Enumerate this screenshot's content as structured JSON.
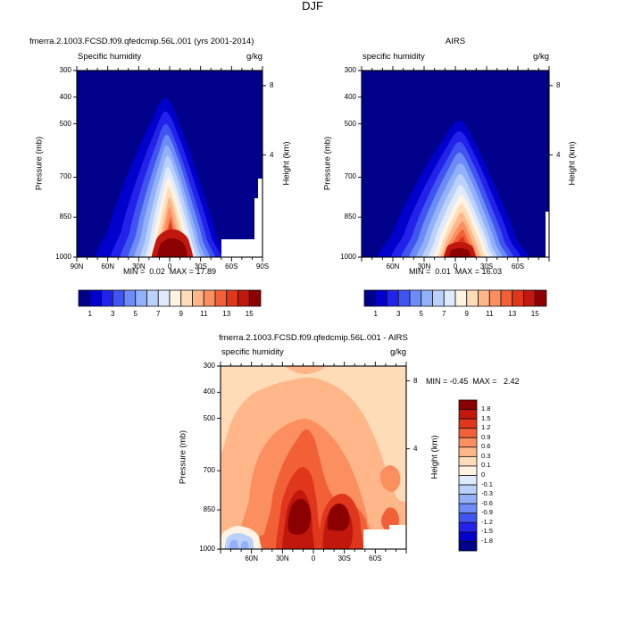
{
  "figure_title": "DJF",
  "palette": [
    "#00008B",
    "#0000CC",
    "#2222EA",
    "#4054F2",
    "#6E8CF7",
    "#93B1FA",
    "#BAD1FC",
    "#DFEAFD",
    "#FFF3E3",
    "#FFDCB8",
    "#FFB78A",
    "#FB8F5F",
    "#F26038",
    "#E0361C",
    "#C1170C",
    "#8B0000"
  ],
  "panels": [
    {
      "title": "fmerra.2.1003.FCSD.f09.qfedcmip.56L.001 (yrs 2001-2014)",
      "header_left": "Specific humidity",
      "header_right": "g/kg",
      "ylabel_left": "Pressure (mb)",
      "ylabel_right": "Height (km)",
      "y_ticks": [
        "300",
        "400",
        "500",
        "700",
        "850",
        "1000"
      ],
      "height_ticks": [
        "8",
        "4"
      ],
      "x_ticks": [
        "90N",
        "60N",
        "30N",
        "0",
        "30S",
        "60S",
        "90S"
      ],
      "stats": "MIN =  0.02  MAX = 17.89",
      "colorbar_labels": [
        "1",
        "3",
        "5",
        "7",
        "9",
        "11",
        "13",
        "15"
      ]
    },
    {
      "title": "AIRS",
      "header_left": "specific humidity",
      "header_right": "g/kg",
      "ylabel_left": "Pressure (mb)",
      "ylabel_right": "Height (km)",
      "y_ticks": [
        "300",
        "400",
        "500",
        "700",
        "850",
        "1000"
      ],
      "height_ticks": [
        "8",
        "4"
      ],
      "x_ticks": [
        "60N",
        "30N",
        "0",
        "30S",
        "60S"
      ],
      "stats": "MIN =  0.01  MAX = 16.03",
      "colorbar_labels": [
        "1",
        "3",
        "5",
        "7",
        "9",
        "11",
        "13",
        "15"
      ]
    },
    {
      "title": "fmerra.2.1003.FCSD.f09.qfedcmip.56L.001 - AIRS",
      "header_left": "specific humidity",
      "header_right": "g/kg",
      "ylabel_left": "Pressure (mb)",
      "ylabel_right": "Height (km)",
      "y_ticks": [
        "300",
        "400",
        "500",
        "700",
        "850",
        "1000"
      ],
      "height_ticks": [
        "8",
        "4"
      ],
      "x_ticks": [
        "60N",
        "30N",
        "0",
        "30S",
        "60S"
      ],
      "stats": "MIN = -0.45  MAX =   2.42",
      "colorbar_labels": [
        "1.8",
        "1.5",
        "1.2",
        "0.9",
        "0.6",
        "0.3",
        "0.1",
        "0",
        "-0.1",
        "-0.3",
        "-0.6",
        "-0.9",
        "-1.2",
        "-1.5",
        "-1.8"
      ]
    }
  ],
  "chart_data": [
    {
      "type": "contour",
      "title": "fmerra.2.1003.FCSD.f09.qfedcmip.56L.001 (yrs 2001-2014)",
      "season": "DJF",
      "variable": "Specific humidity",
      "units": "g/kg",
      "x_ticks": [
        "90N",
        "60N",
        "30N",
        "0",
        "30S",
        "60S",
        "90S"
      ],
      "ylabel": "Pressure (mb)",
      "y_range_mb": [
        300,
        1000
      ],
      "right_axis": "Height (km)",
      "right_ticks_km": [
        8,
        4
      ],
      "contour_levels": [
        1,
        2,
        3,
        4,
        5,
        6,
        7,
        8,
        9,
        10,
        11,
        12,
        13,
        14,
        15
      ],
      "colorbar_labeled_levels": [
        1,
        3,
        5,
        7,
        9,
        11,
        13,
        15
      ],
      "min": 0.02,
      "max": 17.89,
      "missing_data": "white terrain cutout below ~930 mb from ~50S to 90S",
      "structure": "surface equatorial maximum >15 g/kg tapering upward and poleward; <1 g/kg above ~410 mb and poleward of ~65N / ~52S",
      "estimated_values": {
        "pressures_mb": [
          300,
          400,
          500,
          700,
          850,
          1000
        ],
        "latitudes": [
          "90N",
          "60N",
          "30N",
          "0",
          "30S",
          "60S",
          "90S"
        ],
        "grid_g_per_kg": [
          [
            0.1,
            0.2,
            0.4,
            0.9,
            0.6,
            0.2,
            0.1
          ],
          [
            0.2,
            0.3,
            0.9,
            2.0,
            1.3,
            0.4,
            0.1
          ],
          [
            0.3,
            0.6,
            1.6,
            3.8,
            2.6,
            0.8,
            0.2
          ],
          [
            0.8,
            1.5,
            3.6,
            7.6,
            5.4,
            1.8,
            0.3
          ],
          [
            1.2,
            2.4,
            5.5,
            11.5,
            8.0,
            2.8,
            null
          ],
          [
            1.8,
            3.6,
            8.0,
            17.5,
            12.0,
            4.0,
            null
          ]
        ]
      }
    },
    {
      "type": "contour",
      "title": "AIRS",
      "season": "DJF",
      "variable": "specific humidity",
      "units": "g/kg",
      "x_ticks": [
        "60N",
        "30N",
        "0",
        "30S",
        "60S"
      ],
      "ylabel": "Pressure (mb)",
      "y_range_mb": [
        300,
        1000
      ],
      "right_axis": "Height (km)",
      "right_ticks_km": [
        8,
        4
      ],
      "contour_levels": [
        1,
        2,
        3,
        4,
        5,
        6,
        7,
        8,
        9,
        10,
        11,
        12,
        13,
        14,
        15
      ],
      "colorbar_labeled_levels": [
        1,
        3,
        5,
        7,
        9,
        11,
        13,
        15
      ],
      "min": 0.01,
      "max": 16.03,
      "missing_data": "narrow white sliver at far southern edge below ~850 mb",
      "structure": "surface equatorial maximum ~16 g/kg, slightly narrower and drier than the model; <1 g/kg above ~450 mb",
      "estimated_values": {
        "pressures_mb": [
          300,
          400,
          500,
          700,
          850,
          1000
        ],
        "latitudes": [
          "90N",
          "60N",
          "30N",
          "0",
          "30S",
          "60S",
          "90S"
        ],
        "grid_g_per_kg": [
          [
            0.1,
            0.2,
            0.3,
            0.8,
            0.5,
            0.2,
            0.1
          ],
          [
            0.2,
            0.3,
            0.8,
            1.8,
            1.2,
            0.3,
            0.1
          ],
          [
            0.3,
            0.5,
            1.4,
            3.4,
            2.4,
            0.7,
            0.2
          ],
          [
            0.7,
            1.3,
            3.2,
            7.0,
            5.0,
            1.6,
            0.3
          ],
          [
            1.1,
            2.2,
            5.0,
            10.5,
            7.4,
            2.6,
            0.5
          ],
          [
            1.7,
            3.3,
            7.4,
            16.0,
            11.0,
            3.8,
            null
          ]
        ]
      }
    },
    {
      "type": "contour",
      "title": "fmerra.2.1003.FCSD.f09.qfedcmip.56L.001 - AIRS",
      "season": "DJF",
      "variable": "specific humidity difference",
      "units": "g/kg",
      "x_ticks": [
        "60N",
        "30N",
        "0",
        "30S",
        "60S"
      ],
      "ylabel": "Pressure (mb)",
      "y_range_mb": [
        300,
        1000
      ],
      "right_axis": "Height (km)",
      "right_ticks_km": [
        8,
        4
      ],
      "contour_levels": [
        -1.8,
        -1.5,
        -1.2,
        -0.9,
        -0.6,
        -0.3,
        -0.1,
        0,
        0.1,
        0.3,
        0.6,
        0.9,
        1.2,
        1.5,
        1.8
      ],
      "min": -0.45,
      "max": 2.42,
      "missing_data": "white terrain cutout below ~920 mb from ~50S to 90S",
      "structure": "model moister than AIRS almost everywhere (+0.1 to +2.4 g/kg); strongest positive cores >1.8 near 850 mb around 0-10N and ~25S; weak negative patch (~-0.45) near the surface around 55-75N",
      "estimated_values": {
        "pressures_mb": [
          300,
          400,
          500,
          700,
          850,
          1000
        ],
        "latitudes": [
          "90N",
          "60N",
          "30N",
          "0",
          "30S",
          "60S",
          "90S"
        ],
        "grid_g_per_kg": [
          [
            0.2,
            0.2,
            0.3,
            0.4,
            0.3,
            0.2,
            0.2
          ],
          [
            0.2,
            0.3,
            0.4,
            0.7,
            0.5,
            0.3,
            0.2
          ],
          [
            0.3,
            0.4,
            0.6,
            1.0,
            0.7,
            0.4,
            0.3
          ],
          [
            0.4,
            0.5,
            0.8,
            1.4,
            1.0,
            0.6,
            0.4
          ],
          [
            0.4,
            0.6,
            1.0,
            2.0,
            1.9,
            1.0,
            null
          ],
          [
            0.3,
            -0.4,
            0.8,
            1.8,
            1.2,
            0.6,
            null
          ]
        ]
      }
    }
  ]
}
